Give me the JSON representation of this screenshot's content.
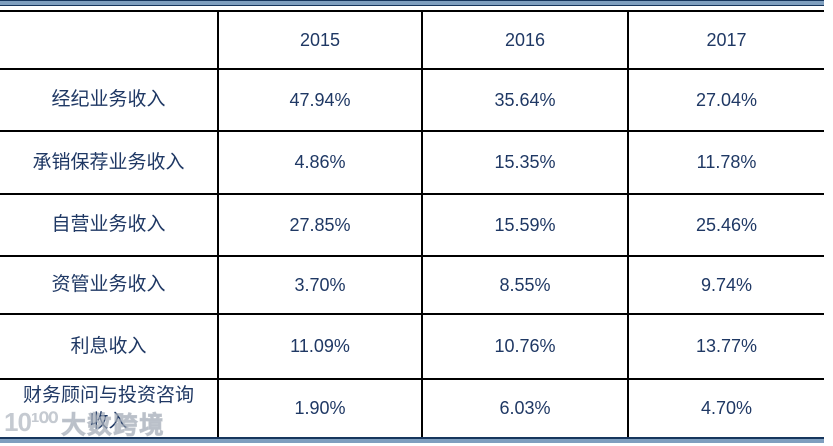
{
  "chart_data": {
    "type": "table",
    "columns": [
      "",
      "2015",
      "2016",
      "2017"
    ],
    "rows": [
      {
        "label": "经纪业务收入",
        "values": [
          "47.94%",
          "35.64%",
          "27.04%"
        ]
      },
      {
        "label": "承销保荐业务收入",
        "values": [
          "4.86%",
          "15.35%",
          "11.78%"
        ]
      },
      {
        "label": "自营业务收入",
        "values": [
          "27.85%",
          "15.59%",
          "25.46%"
        ]
      },
      {
        "label": "资管业务收入",
        "values": [
          "3.70%",
          "8.55%",
          "9.74%"
        ]
      },
      {
        "label": "利息收入",
        "values": [
          "11.09%",
          "10.76%",
          "13.77%"
        ]
      },
      {
        "label": "财务顾问与投资咨询收入",
        "values": [
          "1.90%",
          "6.03%",
          "4.70%"
        ]
      }
    ]
  },
  "watermark": {
    "logo": "10¹⁰⁰",
    "text": "大数跨境"
  },
  "colors": {
    "text_navy": "#1f3864",
    "band_blue": "#7f9fbf",
    "rule_black": "#000000"
  }
}
